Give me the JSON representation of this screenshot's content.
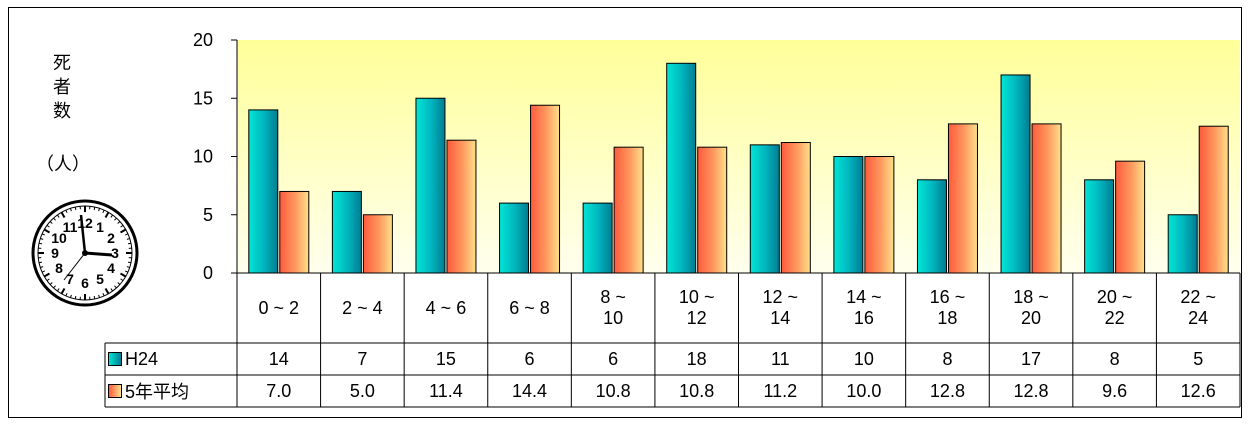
{
  "chart_data": {
    "type": "bar",
    "ylabel": "死者数",
    "yunit": "（人）",
    "ylim": [
      0,
      20
    ],
    "yticks": [
      "0",
      "5",
      "10",
      "15",
      "20"
    ],
    "categories": [
      "0 ~ 2",
      "2 ~ 4",
      "4 ~ 6",
      "6 ~ 8",
      "8 ~ 10",
      "10 ~ 12",
      "12 ~ 14",
      "14 ~ 16",
      "16 ~ 18",
      "18 ~ 20",
      "20 ~ 22",
      "22 ~ 24"
    ],
    "series": [
      {
        "name": "H24",
        "values": [
          14,
          7,
          15,
          6,
          6,
          18,
          11,
          10,
          8,
          17,
          8,
          5
        ],
        "labels": [
          "14",
          "7",
          "15",
          "6",
          "6",
          "18",
          "11",
          "10",
          "8",
          "17",
          "8",
          "5"
        ],
        "color": "#00B8C0"
      },
      {
        "name": "5年平均",
        "values": [
          7.0,
          5.0,
          11.4,
          14.4,
          10.8,
          10.8,
          11.2,
          10.0,
          12.8,
          12.8,
          9.6,
          12.6
        ],
        "labels": [
          "7.0",
          "5.0",
          "11.4",
          "14.4",
          "10.8",
          "10.8",
          "11.2",
          "10.0",
          "12.8",
          "12.8",
          "9.6",
          "12.6"
        ],
        "color": "#FF7A50"
      }
    ],
    "plot_background": [
      "#FFFF99",
      "#FFFFEE"
    ],
    "grid": false,
    "clock_numerals": [
      "12",
      "1",
      "2",
      "3",
      "4",
      "5",
      "6",
      "7",
      "8",
      "9",
      "10",
      "11"
    ]
  }
}
